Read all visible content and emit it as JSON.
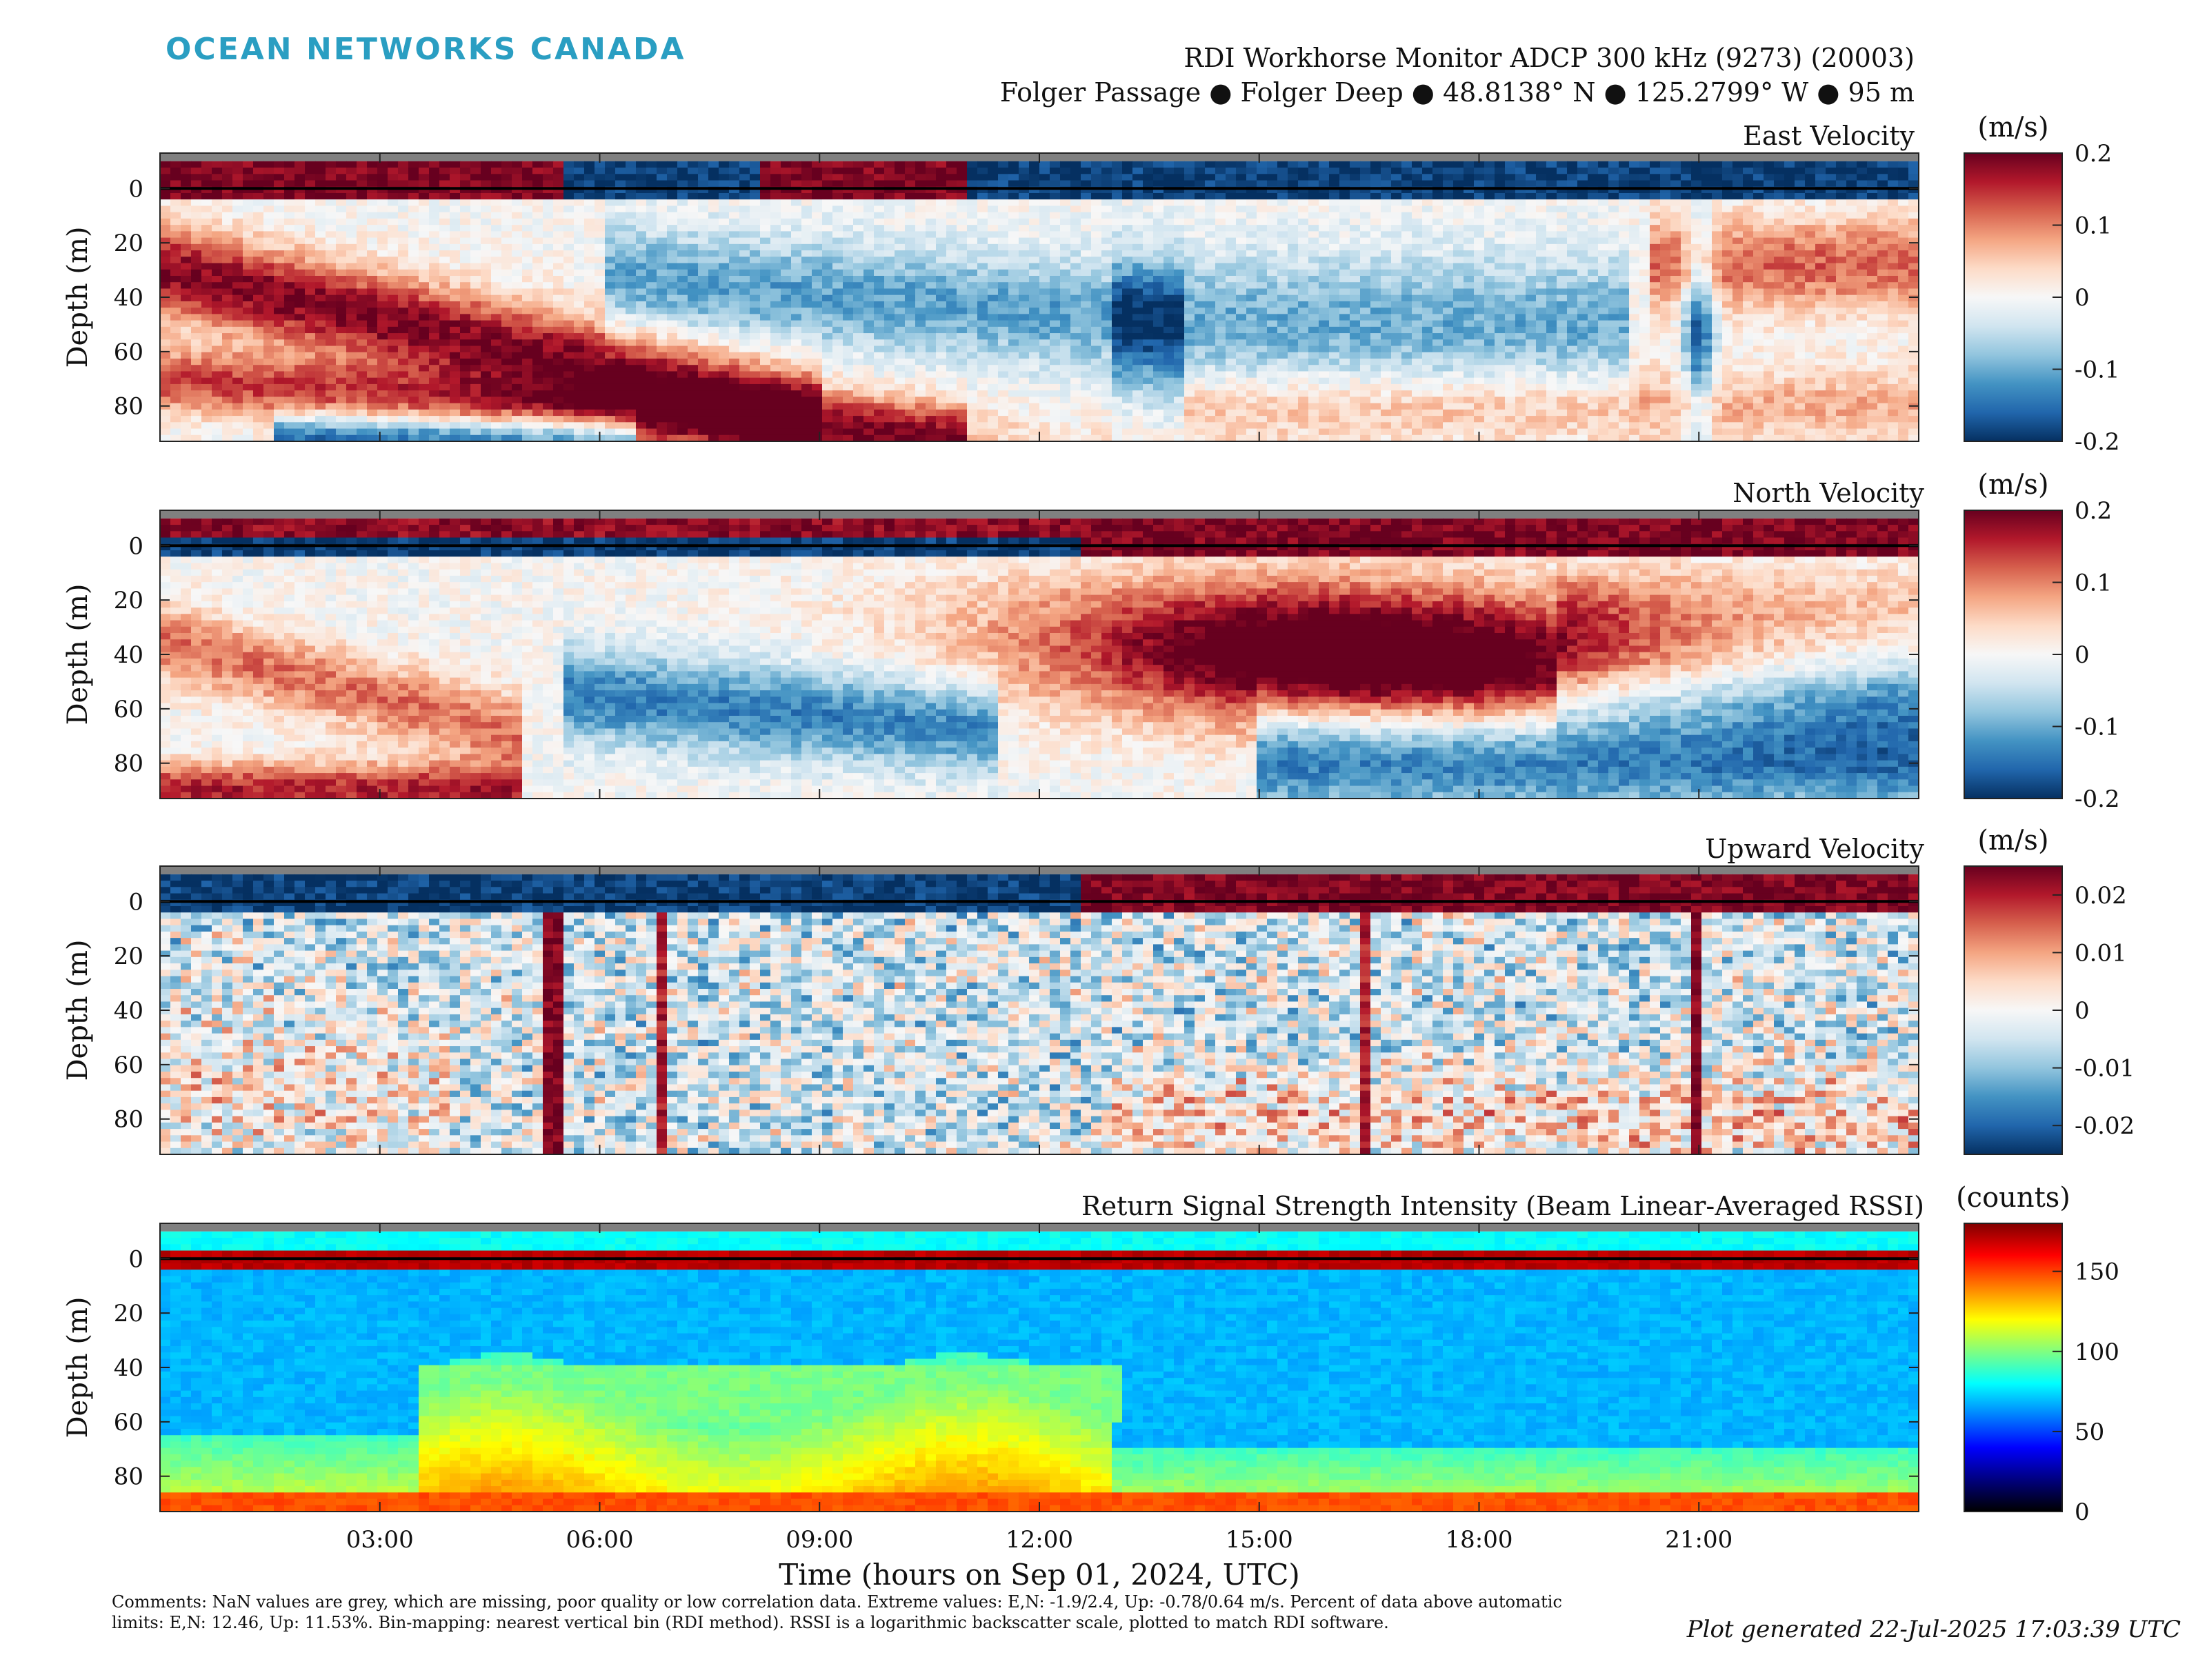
{
  "header": {
    "brand": "OCEAN NETWORKS CANADA",
    "title_line1": "RDI Workhorse Monitor ADCP 300 kHz (9273) (20003)",
    "title_line2": "Folger Passage ● Folger Deep ● 48.8138° N ● 125.2799° W ● 95 m"
  },
  "footer": {
    "comments": "Comments: NaN values are grey, which are missing, poor quality or low correlation data. Extreme values: E,N: -1.9/2.4, Up: -0.78/0.64 m/s. Percent of data above automatic limits: E,N: 12.46, Up: 11.53%. Bin-mapping: nearest vertical bin (RDI method). RSSI is a logarithmic backscatter scale, plotted to match RDI software.",
    "generated": "Plot generated 22-Jul-2025 17:03:39 UTC"
  },
  "colors": {
    "diverging": [
      "#053061",
      "#2166ac",
      "#4393c3",
      "#92c5de",
      "#d1e5f0",
      "#f7f7f7",
      "#fddbc7",
      "#f4a582",
      "#d6604d",
      "#b2182b",
      "#67001f"
    ],
    "rssi": [
      "#000000",
      "#00007f",
      "#0000ff",
      "#0080ff",
      "#00ffff",
      "#80ff80",
      "#ffff00",
      "#ff8000",
      "#ff0000",
      "#800000"
    ],
    "nan": "#808080",
    "zero_line": "#000000"
  },
  "chart_data": [
    {
      "type": "heatmap",
      "title": "East Velocity",
      "ylabel": "Depth (m)",
      "colorbar_label": "(m/s)",
      "colormap": "diverging",
      "clim": [
        -0.2,
        0.2
      ],
      "colorbar_ticks": [
        {
          "v": 0.2,
          "label": "0.2"
        },
        {
          "v": 0.1,
          "label": "0.1"
        },
        {
          "v": 0,
          "label": "0"
        },
        {
          "v": -0.1,
          "label": "-0.1"
        },
        {
          "v": -0.2,
          "label": "-0.2"
        }
      ],
      "ylim": [
        -13,
        93
      ],
      "yticks": [
        "0",
        "20",
        "40",
        "60",
        "80"
      ],
      "xlim_hours": [
        0,
        24
      ],
      "key_pattern": [
        {
          "t_start": 0,
          "t_end": 5,
          "depth": 60,
          "value": 0.18
        },
        {
          "t_start": 0.5,
          "t_end": 2,
          "depth": 42,
          "value": 0.15
        },
        {
          "t_start": 6,
          "t_end": 10,
          "depth": 70,
          "value": 0.12
        },
        {
          "t_start": 2,
          "t_end": 6,
          "depth": 88,
          "value": -0.17
        },
        {
          "t_start": 6,
          "t_end": 14,
          "depth": 30,
          "value": -0.12
        },
        {
          "t_start": 15,
          "t_end": 19,
          "depth": 45,
          "value": -0.12
        },
        {
          "t_start": 20.5,
          "t_end": 21,
          "depth": 20,
          "value": 0.2
        },
        {
          "t_start": 21,
          "t_end": 24,
          "depth": 25,
          "value": 0.12
        },
        {
          "t_start": 11,
          "t_end": 21,
          "depth": 2,
          "value": -0.2
        }
      ]
    },
    {
      "type": "heatmap",
      "title": "North Velocity",
      "ylabel": "Depth (m)",
      "colorbar_label": "(m/s)",
      "colormap": "diverging",
      "clim": [
        -0.2,
        0.2
      ],
      "colorbar_ticks": [
        {
          "v": 0.2,
          "label": "0.2"
        },
        {
          "v": 0.1,
          "label": "0.1"
        },
        {
          "v": 0,
          "label": "0"
        },
        {
          "v": -0.1,
          "label": "-0.1"
        },
        {
          "v": -0.2,
          "label": "-0.2"
        }
      ],
      "ylim": [
        -13,
        93
      ],
      "yticks": [
        "0",
        "20",
        "40",
        "60",
        "80"
      ],
      "xlim_hours": [
        0,
        24
      ],
      "key_pattern": [
        {
          "t_start": 12,
          "t_end": 20,
          "depth": 30,
          "value": 0.2
        },
        {
          "t_start": 0,
          "t_end": 4,
          "depth": 85,
          "value": 0.17
        },
        {
          "t_start": 6,
          "t_end": 10,
          "depth": 60,
          "value": -0.12
        },
        {
          "t_start": 16,
          "t_end": 24,
          "depth": 75,
          "value": -0.17
        },
        {
          "t_start": 0,
          "t_end": 5,
          "depth": 2,
          "value": -0.2
        },
        {
          "t_start": 12.5,
          "t_end": 24,
          "depth": -5,
          "value": 0.2
        }
      ]
    },
    {
      "type": "heatmap",
      "title": "Upward Velocity",
      "ylabel": "Depth (m)",
      "colorbar_label": "(m/s)",
      "colormap": "diverging",
      "clim": [
        -0.025,
        0.025
      ],
      "colorbar_ticks": [
        {
          "v": 0.02,
          "label": "0.02"
        },
        {
          "v": 0.01,
          "label": "0.01"
        },
        {
          "v": 0,
          "label": "0"
        },
        {
          "v": -0.01,
          "label": "-0.01"
        },
        {
          "v": -0.02,
          "label": "-0.02"
        }
      ],
      "ylim": [
        -13,
        93
      ],
      "yticks": [
        "0",
        "20",
        "40",
        "60",
        "80"
      ],
      "xlim_hours": [
        0,
        24
      ],
      "key_pattern": [
        {
          "t_start": 12.5,
          "t_end": 24,
          "depth": -5,
          "value": 0.025
        },
        {
          "t_start": 0,
          "t_end": 12.5,
          "depth": -5,
          "value": -0.025
        },
        {
          "t_start": 13,
          "t_end": 24,
          "depth": 80,
          "value": 0.01
        },
        {
          "t_start": 0,
          "t_end": 12,
          "depth": 40,
          "value": -0.005
        }
      ]
    },
    {
      "type": "heatmap",
      "title": "Return Signal Strength Intensity (Beam Linear-Averaged RSSI)",
      "ylabel": "Depth (m)",
      "xlabel": "Time (hours on Sep 01, 2024, UTC)",
      "colorbar_label": "(counts)",
      "colormap": "rssi",
      "clim": [
        0,
        180
      ],
      "colorbar_ticks": [
        {
          "v": 150,
          "label": "150"
        },
        {
          "v": 100,
          "label": "100"
        },
        {
          "v": 50,
          "label": "50"
        },
        {
          "v": 0,
          "label": "0"
        }
      ],
      "ylim": [
        -13,
        93
      ],
      "yticks": [
        "0",
        "20",
        "40",
        "60",
        "80"
      ],
      "xlim_hours": [
        0,
        24
      ],
      "xticks": [
        "03:00",
        "06:00",
        "09:00",
        "12:00",
        "15:00",
        "18:00",
        "21:00"
      ],
      "key_pattern": [
        {
          "t_start": 0,
          "t_end": 24,
          "depth": 5,
          "value": 160
        },
        {
          "t_start": 0,
          "t_end": 24,
          "depth": 90,
          "value": 140
        },
        {
          "t_start": 3.5,
          "t_end": 13,
          "depth": 50,
          "value": 95
        },
        {
          "t_start": 13,
          "t_end": 24,
          "depth": 40,
          "value": 45
        }
      ]
    }
  ]
}
